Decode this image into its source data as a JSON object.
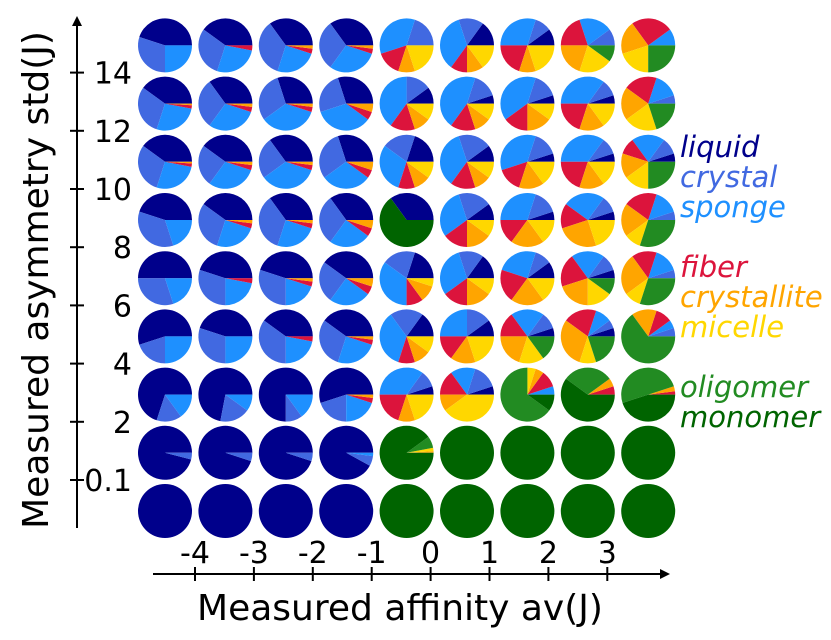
{
  "chart_data": {
    "type": "pie-grid",
    "xlabel": "Measured affinity av(J)",
    "ylabel": "Measured asymmetry std(J)",
    "x_ticks": [
      "-4",
      "-3",
      "-2",
      "-1",
      "0",
      "1",
      "2",
      "3"
    ],
    "y_ticks": [
      "0.1",
      "2",
      "4",
      "6",
      "8",
      "10",
      "12",
      "14"
    ],
    "categories": [
      "liquid",
      "crystal",
      "sponge",
      "fiber",
      "crystallite",
      "micelle",
      "oligomer",
      "monomer"
    ],
    "colors": [
      "#00008b",
      "#4169e1",
      "#1e90ff",
      "#dc143c",
      "#ffa500",
      "#ffd700",
      "#228b22",
      "#006400"
    ],
    "legend": [
      {
        "name": "liquid",
        "color": "#00008b"
      },
      {
        "name": "crystal",
        "color": "#4169e1"
      },
      {
        "name": "sponge",
        "color": "#1e90ff"
      },
      {
        "name": "fiber",
        "color": "#dc143c"
      },
      {
        "name": "crystallite",
        "color": "#ffa500"
      },
      {
        "name": "micelle",
        "color": "#ffd700"
      },
      {
        "name": "oligomer",
        "color": "#228b22"
      },
      {
        "name": "monomer",
        "color": "#006400"
      }
    ],
    "legend_position": "right",
    "grid": false,
    "pies": [
      [
        [
          1,
          0,
          0,
          0,
          0,
          0,
          0,
          0
        ],
        [
          1,
          0,
          0,
          0,
          0,
          0,
          0,
          0
        ],
        [
          1,
          0,
          0,
          0,
          0,
          0,
          0,
          0
        ],
        [
          1,
          0,
          0,
          0,
          0,
          0,
          0,
          0
        ],
        [
          0,
          0,
          0,
          0,
          0,
          0,
          0,
          1
        ],
        [
          0,
          0,
          0,
          0,
          0,
          0,
          0,
          1
        ],
        [
          0,
          0,
          0,
          0,
          0,
          0,
          0,
          1
        ],
        [
          0,
          0,
          0,
          0,
          0,
          0,
          0,
          1
        ],
        [
          0,
          0,
          0,
          0,
          0,
          0,
          0,
          1
        ]
      ],
      [
        [
          0.96,
          0.04,
          0,
          0,
          0,
          0,
          0,
          0
        ],
        [
          0.95,
          0.05,
          0,
          0,
          0,
          0,
          0,
          0
        ],
        [
          0.95,
          0.05,
          0,
          0,
          0,
          0,
          0,
          0
        ],
        [
          0.92,
          0.06,
          0.02,
          0,
          0,
          0,
          0,
          0
        ],
        [
          0,
          0,
          0,
          0,
          0.01,
          0.02,
          0.07,
          0.9
        ],
        [
          0,
          0,
          0,
          0,
          0,
          0,
          0,
          1
        ],
        [
          0,
          0,
          0,
          0,
          0,
          0,
          0,
          1
        ],
        [
          0,
          0,
          0,
          0,
          0,
          0,
          0,
          1
        ],
        [
          0,
          0,
          0,
          0,
          0,
          0,
          0,
          1
        ]
      ],
      [
        [
          0.7,
          0.15,
          0.15,
          0,
          0,
          0,
          0,
          0
        ],
        [
          0.72,
          0.18,
          0.1,
          0,
          0,
          0,
          0,
          0
        ],
        [
          0.75,
          0.1,
          0.15,
          0,
          0,
          0,
          0,
          0
        ],
        [
          0.55,
          0.2,
          0.2,
          0.03,
          0.02,
          0,
          0,
          0
        ],
        [
          0.05,
          0.1,
          0.35,
          0.2,
          0.1,
          0.2,
          0,
          0
        ],
        [
          0.05,
          0.15,
          0.15,
          0.15,
          0.1,
          0.4,
          0,
          0
        ],
        [
          0,
          0,
          0.05,
          0.1,
          0.05,
          0.05,
          0.65,
          0.1
        ],
        [
          0,
          0,
          0,
          0.05,
          0.05,
          0,
          0.3,
          0.6
        ],
        [
          0,
          0,
          0,
          0.02,
          0.03,
          0,
          0.5,
          0.45
        ]
      ],
      [
        [
          0.55,
          0.2,
          0.25,
          0,
          0,
          0,
          0,
          0
        ],
        [
          0.45,
          0.3,
          0.25,
          0,
          0,
          0,
          0,
          0
        ],
        [
          0.4,
          0.35,
          0.22,
          0.03,
          0,
          0,
          0,
          0
        ],
        [
          0.4,
          0.3,
          0.25,
          0.03,
          0.02,
          0,
          0,
          0
        ],
        [
          0.15,
          0.2,
          0.35,
          0.1,
          0.1,
          0.1,
          0,
          0
        ],
        [
          0.1,
          0.15,
          0.25,
          0.15,
          0.15,
          0.2,
          0,
          0
        ],
        [
          0.05,
          0.1,
          0.2,
          0.15,
          0.2,
          0.15,
          0.15,
          0
        ],
        [
          0.05,
          0.05,
          0.1,
          0.2,
          0.3,
          0.1,
          0.2,
          0
        ],
        [
          0,
          0.05,
          0.05,
          0.1,
          0.15,
          0,
          0.65,
          0
        ]
      ],
      [
        [
          0.5,
          0.3,
          0.2,
          0,
          0,
          0,
          0,
          0
        ],
        [
          0.45,
          0.3,
          0.22,
          0.03,
          0,
          0,
          0,
          0
        ],
        [
          0.45,
          0.3,
          0.2,
          0.03,
          0.02,
          0,
          0,
          0
        ],
        [
          0.4,
          0.25,
          0.25,
          0.05,
          0.05,
          0,
          0,
          0
        ],
        [
          0.2,
          0.2,
          0.35,
          0.1,
          0.1,
          0.05,
          0,
          0
        ],
        [
          0.15,
          0.15,
          0.3,
          0.15,
          0.15,
          0.1,
          0,
          0
        ],
        [
          0.1,
          0.1,
          0.25,
          0.2,
          0.2,
          0.15,
          0,
          0
        ],
        [
          0.05,
          0.1,
          0.2,
          0.2,
          0.2,
          0.15,
          0.1,
          0
        ],
        [
          0,
          0.05,
          0.15,
          0.15,
          0.25,
          0.1,
          0.3,
          0
        ]
      ],
      [
        [
          0.45,
          0.35,
          0.2,
          0,
          0,
          0,
          0,
          0
        ],
        [
          0.4,
          0.3,
          0.25,
          0.03,
          0.02,
          0,
          0,
          0
        ],
        [
          0.35,
          0.35,
          0.25,
          0.03,
          0.02,
          0,
          0,
          0
        ],
        [
          0.35,
          0.3,
          0.25,
          0.05,
          0.05,
          0,
          0,
          0
        ],
        [
          0.35,
          0,
          0,
          0,
          0,
          0,
          0,
          0.65
        ],
        [
          0.1,
          0.2,
          0.3,
          0.15,
          0.15,
          0.1,
          0,
          0
        ],
        [
          0.05,
          0.15,
          0.3,
          0.15,
          0.2,
          0.15,
          0,
          0
        ],
        [
          0.05,
          0.1,
          0.25,
          0.15,
          0.25,
          0.2,
          0,
          0
        ],
        [
          0,
          0.05,
          0.15,
          0.2,
          0.2,
          0.1,
          0.3,
          0
        ]
      ],
      [
        [
          0.4,
          0.3,
          0.27,
          0.02,
          0.01,
          0,
          0,
          0
        ],
        [
          0.4,
          0.25,
          0.3,
          0.03,
          0.02,
          0,
          0,
          0
        ],
        [
          0.35,
          0.25,
          0.35,
          0.03,
          0.02,
          0,
          0,
          0
        ],
        [
          0.3,
          0.3,
          0.3,
          0.05,
          0.05,
          0,
          0,
          0
        ],
        [
          0.2,
          0.2,
          0.3,
          0.1,
          0.1,
          0.1,
          0,
          0
        ],
        [
          0.1,
          0.2,
          0.35,
          0.15,
          0.1,
          0.1,
          0,
          0
        ],
        [
          0.05,
          0.15,
          0.35,
          0.15,
          0.15,
          0.15,
          0,
          0
        ],
        [
          0.05,
          0.1,
          0.35,
          0.2,
          0.15,
          0.15,
          0,
          0
        ],
        [
          0.05,
          0.1,
          0.2,
          0.1,
          0.15,
          0.15,
          0.25,
          0
        ]
      ],
      [
        [
          0.4,
          0.3,
          0.27,
          0.02,
          0.01,
          0,
          0,
          0
        ],
        [
          0.35,
          0.3,
          0.3,
          0.03,
          0.02,
          0,
          0,
          0
        ],
        [
          0.3,
          0.3,
          0.35,
          0.03,
          0.02,
          0,
          0,
          0
        ],
        [
          0.3,
          0.25,
          0.35,
          0.05,
          0.05,
          0,
          0,
          0
        ],
        [
          0.1,
          0.15,
          0.4,
          0.15,
          0.1,
          0.1,
          0,
          0
        ],
        [
          0.05,
          0.15,
          0.45,
          0.15,
          0.1,
          0.1,
          0,
          0
        ],
        [
          0.05,
          0.15,
          0.4,
          0.15,
          0.15,
          0.1,
          0,
          0
        ],
        [
          0.05,
          0.1,
          0.35,
          0.2,
          0.15,
          0.15,
          0,
          0
        ],
        [
          0,
          0.05,
          0.15,
          0.2,
          0.2,
          0.2,
          0.2,
          0
        ]
      ],
      [
        [
          0.45,
          0.3,
          0.25,
          0,
          0,
          0,
          0,
          0
        ],
        [
          0.4,
          0.3,
          0.27,
          0.03,
          0,
          0,
          0,
          0
        ],
        [
          0.35,
          0.35,
          0.25,
          0.03,
          0.02,
          0,
          0,
          0
        ],
        [
          0.35,
          0.3,
          0.3,
          0.03,
          0.02,
          0,
          0,
          0
        ],
        [
          0,
          0.2,
          0.35,
          0.15,
          0.1,
          0.2,
          0,
          0
        ],
        [
          0.15,
          0.15,
          0.35,
          0.1,
          0.1,
          0.15,
          0,
          0
        ],
        [
          0.1,
          0.1,
          0.3,
          0.2,
          0.1,
          0.2,
          0,
          0
        ],
        [
          0,
          0.1,
          0.2,
          0.2,
          0.2,
          0.2,
          0.1,
          0
        ],
        [
          0,
          0,
          0.1,
          0.25,
          0.2,
          0.2,
          0.25,
          0
        ]
      ]
    ]
  }
}
